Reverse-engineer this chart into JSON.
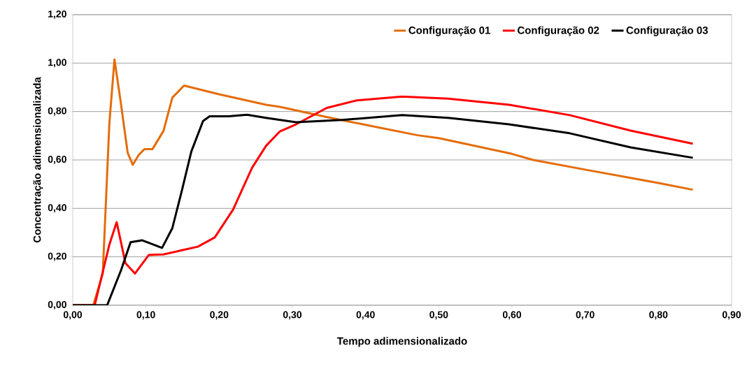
{
  "chart_data": {
    "type": "line",
    "xlabel": "Tempo adimensionalizado",
    "ylabel": "Concentração adimensionalizada",
    "xlim": [
      0,
      0.9
    ],
    "ylim": [
      0,
      1.2
    ],
    "xticks": [
      {
        "value": 0,
        "label": "0,00"
      },
      {
        "value": 0.1,
        "label": "0,10"
      },
      {
        "value": 0.2,
        "label": "0,20"
      },
      {
        "value": 0.3,
        "label": "0,30"
      },
      {
        "value": 0.4,
        "label": "0,40"
      },
      {
        "value": 0.5,
        "label": "0,50"
      },
      {
        "value": 0.6,
        "label": "0,60"
      },
      {
        "value": 0.7,
        "label": "0,70"
      },
      {
        "value": 0.8,
        "label": "0,80"
      },
      {
        "value": 0.9,
        "label": "0,90"
      }
    ],
    "yticks": [
      {
        "value": 0,
        "label": "0,00"
      },
      {
        "value": 0.2,
        "label": "0,20"
      },
      {
        "value": 0.4,
        "label": "0,40"
      },
      {
        "value": 0.6,
        "label": "0,60"
      },
      {
        "value": 0.8,
        "label": "0,80"
      },
      {
        "value": 1.0,
        "label": "1,00"
      },
      {
        "value": 1.2,
        "label": "1,20"
      }
    ],
    "grid": "y",
    "legend": "top right",
    "marker": "none",
    "line_style": "solid",
    "series": [
      {
        "name": "Configuração 01",
        "color": "#e46c0a",
        "x": [
          0,
          0.028,
          0.041,
          0.05,
          0.057,
          0.065,
          0.075,
          0.082,
          0.09,
          0.098,
          0.109,
          0.124,
          0.136,
          0.152,
          0.2,
          0.264,
          0.283,
          0.35,
          0.4,
          0.471,
          0.5,
          0.6,
          0.629,
          0.7,
          0.8,
          0.847
        ],
        "values": [
          0,
          0,
          0.13,
          0.75,
          1.015,
          0.85,
          0.63,
          0.58,
          0.62,
          0.645,
          0.645,
          0.72,
          0.857,
          0.907,
          0.871,
          0.828,
          0.819,
          0.775,
          0.745,
          0.702,
          0.69,
          0.625,
          0.6,
          0.56,
          0.505,
          0.477
        ]
      },
      {
        "name": "Configuração 02",
        "color": "#ff0000",
        "x": [
          0,
          0.03,
          0.05,
          0.06,
          0.072,
          0.085,
          0.104,
          0.124,
          0.171,
          0.194,
          0.219,
          0.245,
          0.264,
          0.283,
          0.305,
          0.347,
          0.388,
          0.45,
          0.513,
          0.596,
          0.679,
          0.762,
          0.847
        ],
        "values": [
          0,
          0,
          0.25,
          0.343,
          0.174,
          0.131,
          0.208,
          0.21,
          0.242,
          0.28,
          0.395,
          0.568,
          0.658,
          0.718,
          0.747,
          0.815,
          0.846,
          0.862,
          0.853,
          0.828,
          0.785,
          0.721,
          0.667
        ]
      },
      {
        "name": "Configuração 03",
        "color": "#000000",
        "x": [
          0,
          0.047,
          0.066,
          0.079,
          0.095,
          0.122,
          0.136,
          0.149,
          0.162,
          0.178,
          0.187,
          0.213,
          0.238,
          0.264,
          0.305,
          0.367,
          0.45,
          0.513,
          0.596,
          0.679,
          0.762,
          0.847
        ],
        "values": [
          0,
          0,
          0.145,
          0.26,
          0.268,
          0.237,
          0.318,
          0.473,
          0.635,
          0.761,
          0.78,
          0.78,
          0.787,
          0.774,
          0.756,
          0.765,
          0.785,
          0.774,
          0.747,
          0.71,
          0.652,
          0.609
        ]
      }
    ]
  }
}
